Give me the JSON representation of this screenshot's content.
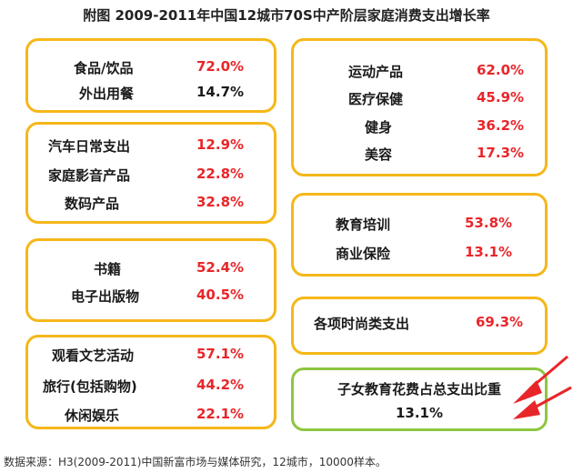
{
  "title": "附图 2009-2011年中国12城市70S中产阶层家庭消费支出增长率",
  "boxes": {
    "food": {
      "items": [
        {
          "label": "食品/饮品",
          "value": "72.0%"
        },
        {
          "label": "外出用餐",
          "value": "14.7%"
        }
      ]
    },
    "car": {
      "items": [
        {
          "label": "汽车日常支出",
          "value": "12.9%"
        },
        {
          "label": "家庭影音产品",
          "value": "22.8%"
        },
        {
          "label": "数码产品",
          "value": "32.8%"
        }
      ]
    },
    "books": {
      "items": [
        {
          "label": "书籍",
          "value": "52.4%"
        },
        {
          "label": "电子出版物",
          "value": "40.5%"
        }
      ]
    },
    "leisure": {
      "items": [
        {
          "label": "观看文艺活动",
          "value": "57.1%"
        },
        {
          "label": "旅行(包括购物)",
          "value": "44.2%"
        },
        {
          "label": "休闲娱乐",
          "value": "22.1%"
        }
      ]
    },
    "sports": {
      "items": [
        {
          "label": "运动产品",
          "value": "62.0%"
        },
        {
          "label": "医疗保健",
          "value": "45.9%"
        },
        {
          "label": "健身",
          "value": "36.2%"
        },
        {
          "label": "美容",
          "value": "17.3%"
        }
      ]
    },
    "education": {
      "items": [
        {
          "label": "教育培训",
          "value": "53.8%"
        },
        {
          "label": "商业保险",
          "value": "13.1%"
        }
      ]
    },
    "fashion": {
      "items": [
        {
          "label": "各项时尚类支出",
          "value": "69.3%"
        }
      ]
    },
    "child": {
      "label": "子女教育花费占总支出比重",
      "value": "13.1%"
    }
  },
  "colors": {
    "box_border": "#f5b719",
    "highlight_border": "#8dc63f",
    "value_red": "#e8262a",
    "arrow_red": "#e8262a"
  },
  "footer": "数据来源：H3(2009-2011)中国新富市场与媒体研究，12城市，10000样本。"
}
